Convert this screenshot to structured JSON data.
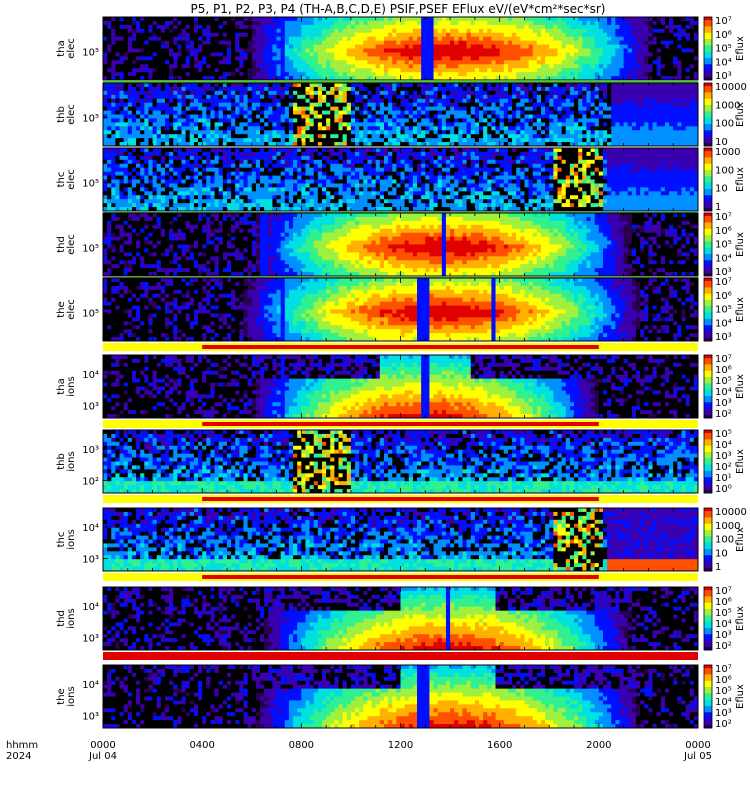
{
  "chart_data": {
    "type": "heatmap",
    "title": "P5, P1, P2, P3, P4 (TH-A,B,C,D,E) PSIF,PSEF EFlux eV/(eV*cm²*sec*sr)",
    "x_axis": {
      "label_top": "hhmm",
      "label_bottom": "2024",
      "ticks": [
        {
          "t": 0,
          "label": "0000",
          "sub": "Jul 04"
        },
        {
          "t": 4,
          "label": "0400",
          "sub": ""
        },
        {
          "t": 8,
          "label": "0800",
          "sub": ""
        },
        {
          "t": 12,
          "label": "1200",
          "sub": ""
        },
        {
          "t": 16,
          "label": "1600",
          "sub": ""
        },
        {
          "t": 20,
          "label": "2000",
          "sub": ""
        },
        {
          "t": 24,
          "label": "0000",
          "sub": "Jul 05"
        }
      ],
      "range_hours": [
        0,
        24
      ]
    },
    "panels": [
      {
        "name": "tha-elec",
        "ylabel": [
          "tha",
          "elec"
        ],
        "yticks": [
          "10⁵"
        ],
        "colorbar_label": "Eflux",
        "colorbar_ticks": [
          "10⁷",
          "10⁶",
          "10⁵",
          "10⁴",
          "10³"
        ],
        "clim": [
          3,
          7
        ],
        "kind": "elec",
        "mode": "normal",
        "start": 5.8,
        "end": 22.2,
        "gaps": [
          7.3,
          13.0,
          13.3
        ],
        "status_bar": "green"
      },
      {
        "name": "thb-elec",
        "ylabel": [
          "thb",
          "elec"
        ],
        "yticks": [
          "10⁵"
        ],
        "colorbar_label": "Eflux",
        "colorbar_ticks": [
          "10000",
          "1000",
          "100",
          "10"
        ],
        "clim": [
          1,
          4
        ],
        "kind": "elec",
        "mode": "burst",
        "burst_window": [
          7.6,
          10.0
        ],
        "recover_at": 20.5,
        "status_bar": "none"
      },
      {
        "name": "thc-elec",
        "ylabel": [
          "thc",
          "elec"
        ],
        "yticks": [
          "10⁵"
        ],
        "colorbar_label": "Eflux",
        "colorbar_ticks": [
          "1000",
          "100",
          "10",
          "1"
        ],
        "clim": [
          0,
          3
        ],
        "kind": "elec",
        "mode": "burst",
        "burst_window": [
          18.2,
          20.2
        ],
        "recover_at": 20.3,
        "status_bar": "green"
      },
      {
        "name": "thd-elec",
        "ylabel": [
          "thd",
          "elec"
        ],
        "yticks": [
          "10⁵"
        ],
        "colorbar_label": "Eflux",
        "colorbar_ticks": [
          "10⁷",
          "10⁶",
          "10⁵",
          "10⁴",
          "10³"
        ],
        "clim": [
          3,
          7
        ],
        "kind": "elec",
        "mode": "normal",
        "start": 6.1,
        "end": 21.3,
        "gaps": [
          6.5,
          13.8
        ],
        "status_bar": "green"
      },
      {
        "name": "the-elec",
        "ylabel": [
          "the",
          "elec"
        ],
        "yticks": [
          "10⁵"
        ],
        "colorbar_label": "Eflux",
        "colorbar_ticks": [
          "10⁷",
          "10⁶",
          "10⁵",
          "10⁴",
          "10³"
        ],
        "clim": [
          3,
          7
        ],
        "kind": "elec",
        "mode": "normal",
        "start": 5.6,
        "end": 21.7,
        "gaps": [
          7.2,
          12.7,
          13.0,
          15.8
        ],
        "status_bar": "red-yellow"
      },
      {
        "name": "tha-ions",
        "ylabel": [
          "tha",
          "ions"
        ],
        "yticks": [
          "10⁴",
          "10³"
        ],
        "colorbar_label": "Eflux",
        "colorbar_ticks": [
          "10⁷",
          "10⁶",
          "10⁵",
          "10⁴",
          "10³",
          "10²"
        ],
        "clim": [
          2,
          7
        ],
        "kind": "ions",
        "mode": "normal",
        "start": 6.0,
        "end": 20.0,
        "gaps": [
          7.3,
          13.0
        ],
        "status_bar": "red-yellow"
      },
      {
        "name": "thb-ions",
        "ylabel": [
          "thb",
          "ions"
        ],
        "yticks": [
          "10³",
          "10²"
        ],
        "colorbar_label": "Eflux",
        "colorbar_ticks": [
          "10⁵",
          "10⁴",
          "10³",
          "10²",
          "10¹",
          "10⁰"
        ],
        "clim": [
          0,
          5
        ],
        "kind": "ions",
        "mode": "burst",
        "burst_window": [
          7.6,
          10.0
        ],
        "recover_at": 24,
        "status_bar": "red-yellow"
      },
      {
        "name": "thc-ions",
        "ylabel": [
          "thc",
          "ions"
        ],
        "yticks": [
          "10⁴",
          "10³"
        ],
        "colorbar_label": "Eflux",
        "colorbar_ticks": [
          "10000",
          "1000",
          "100",
          "10",
          "1"
        ],
        "clim": [
          0,
          4
        ],
        "kind": "ions",
        "mode": "burst",
        "burst_window": [
          18.2,
          20.2
        ],
        "recover_at": 20.3,
        "status_bar": "red-yellow"
      },
      {
        "name": "thd-ions",
        "ylabel": [
          "thd",
          "ions"
        ],
        "yticks": [
          "10⁴",
          "10³"
        ],
        "colorbar_label": "Eflux",
        "colorbar_ticks": [
          "10⁷",
          "10⁶",
          "10⁵",
          "10⁴",
          "10³",
          "10²"
        ],
        "clim": [
          2,
          7
        ],
        "kind": "ions",
        "mode": "normal",
        "start": 6.5,
        "end": 21.3,
        "gaps": [
          13.9
        ],
        "status_bar": "red"
      },
      {
        "name": "the-ions",
        "ylabel": [
          "the",
          "ions"
        ],
        "yticks": [
          "10⁴",
          "10³"
        ],
        "colorbar_label": "Eflux",
        "colorbar_ticks": [
          "10⁷",
          "10⁶",
          "10⁵",
          "10⁴",
          "10³",
          "10²"
        ],
        "clim": [
          2,
          7
        ],
        "kind": "ions",
        "mode": "normal",
        "start": 6.2,
        "end": 21.7,
        "gaps": [
          12.7,
          13.0
        ],
        "status_bar": "none"
      }
    ],
    "colormap": [
      "#2a0050",
      "#3a00b0",
      "#0010ff",
      "#0090ff",
      "#00e0e0",
      "#30f090",
      "#a0f040",
      "#ffff00",
      "#ffb000",
      "#ff5000",
      "#e00000"
    ]
  }
}
